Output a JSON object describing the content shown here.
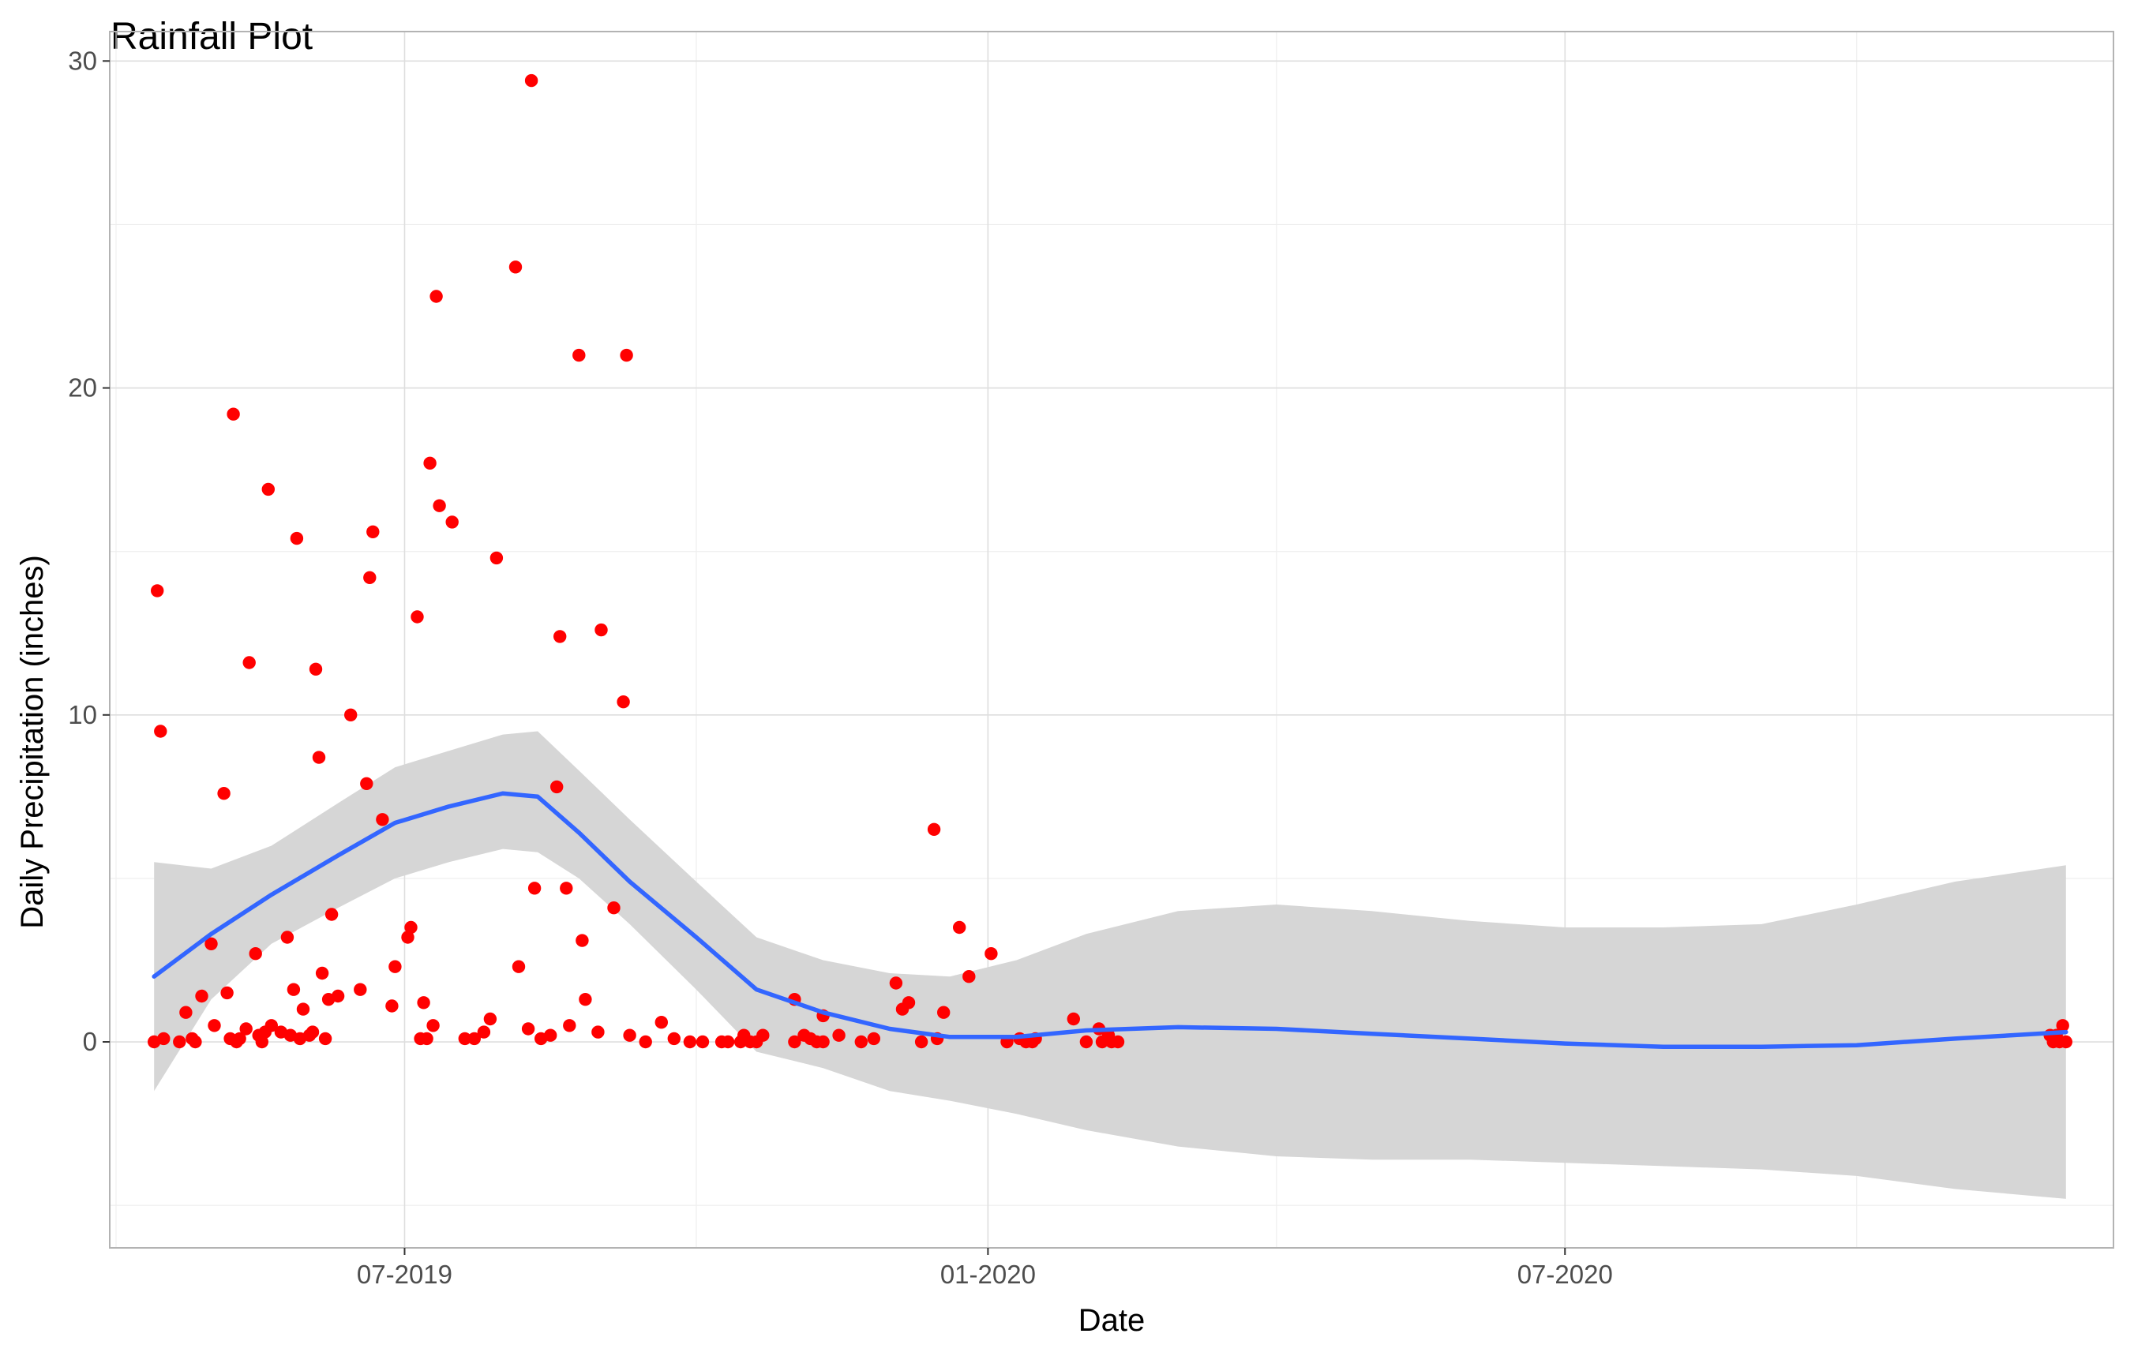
{
  "chart_data": {
    "type": "scatter",
    "title": "Rainfall Plot",
    "xlabel": "Date",
    "ylabel": "Daily Precipitation (inches)",
    "xlim": [
      "2019-03-30",
      "2020-12-21"
    ],
    "ylim": [
      -6.3,
      30.9
    ],
    "x_ticks": [
      "2019-07-01",
      "2020-01-01",
      "2020-07-01"
    ],
    "x_tick_labels": [
      "07-2019",
      "01-2020",
      "07-2020"
    ],
    "y_ticks": [
      0,
      10,
      20,
      30
    ],
    "y_tick_labels": [
      "0",
      "10",
      "20",
      "30"
    ],
    "grid": true,
    "point_color": "#ff0000",
    "smooth_color": "#3366ff",
    "band_color": "#d6d6d6",
    "series": [
      {
        "kind": "points",
        "points": [
          {
            "x": "2019-04-13",
            "y": 0.0
          },
          {
            "x": "2019-04-14",
            "y": 13.8
          },
          {
            "x": "2019-04-15",
            "y": 9.5
          },
          {
            "x": "2019-04-16",
            "y": 0.1
          },
          {
            "x": "2019-04-21",
            "y": 0.0
          },
          {
            "x": "2019-04-23",
            "y": 0.9
          },
          {
            "x": "2019-04-25",
            "y": 0.1
          },
          {
            "x": "2019-04-26",
            "y": 0.0
          },
          {
            "x": "2019-04-28",
            "y": 1.4
          },
          {
            "x": "2019-05-01",
            "y": 3.0
          },
          {
            "x": "2019-05-02",
            "y": 0.5
          },
          {
            "x": "2019-05-05",
            "y": 7.6
          },
          {
            "x": "2019-05-06",
            "y": 1.5
          },
          {
            "x": "2019-05-07",
            "y": 0.1
          },
          {
            "x": "2019-05-08",
            "y": 19.2
          },
          {
            "x": "2019-05-09",
            "y": 0.0
          },
          {
            "x": "2019-05-10",
            "y": 0.1
          },
          {
            "x": "2019-05-12",
            "y": 0.4
          },
          {
            "x": "2019-05-13",
            "y": 11.6
          },
          {
            "x": "2019-05-15",
            "y": 2.7
          },
          {
            "x": "2019-05-16",
            "y": 0.2
          },
          {
            "x": "2019-05-17",
            "y": 0.0
          },
          {
            "x": "2019-05-18",
            "y": 0.3
          },
          {
            "x": "2019-05-19",
            "y": 16.9
          },
          {
            "x": "2019-05-20",
            "y": 0.5
          },
          {
            "x": "2019-05-23",
            "y": 0.3
          },
          {
            "x": "2019-05-25",
            "y": 3.2
          },
          {
            "x": "2019-05-26",
            "y": 0.2
          },
          {
            "x": "2019-05-27",
            "y": 1.6
          },
          {
            "x": "2019-05-28",
            "y": 15.4
          },
          {
            "x": "2019-05-29",
            "y": 0.1
          },
          {
            "x": "2019-05-30",
            "y": 1.0
          },
          {
            "x": "2019-06-01",
            "y": 0.2
          },
          {
            "x": "2019-06-02",
            "y": 0.3
          },
          {
            "x": "2019-06-03",
            "y": 11.4
          },
          {
            "x": "2019-06-04",
            "y": 8.7
          },
          {
            "x": "2019-06-05",
            "y": 2.1
          },
          {
            "x": "2019-06-06",
            "y": 0.1
          },
          {
            "x": "2019-06-07",
            "y": 1.3
          },
          {
            "x": "2019-06-08",
            "y": 3.9
          },
          {
            "x": "2019-06-10",
            "y": 1.4
          },
          {
            "x": "2019-06-14",
            "y": 10.0
          },
          {
            "x": "2019-06-17",
            "y": 1.6
          },
          {
            "x": "2019-06-19",
            "y": 7.9
          },
          {
            "x": "2019-06-20",
            "y": 14.2
          },
          {
            "x": "2019-06-21",
            "y": 15.6
          },
          {
            "x": "2019-06-24",
            "y": 6.8
          },
          {
            "x": "2019-06-27",
            "y": 1.1
          },
          {
            "x": "2019-06-28",
            "y": 2.3
          },
          {
            "x": "2019-07-02",
            "y": 3.2
          },
          {
            "x": "2019-07-03",
            "y": 3.5
          },
          {
            "x": "2019-07-05",
            "y": 13.0
          },
          {
            "x": "2019-07-06",
            "y": 0.1
          },
          {
            "x": "2019-07-07",
            "y": 1.2
          },
          {
            "x": "2019-07-08",
            "y": 0.1
          },
          {
            "x": "2019-07-09",
            "y": 17.7
          },
          {
            "x": "2019-07-10",
            "y": 0.5
          },
          {
            "x": "2019-07-11",
            "y": 22.8
          },
          {
            "x": "2019-07-12",
            "y": 16.4
          },
          {
            "x": "2019-07-16",
            "y": 15.9
          },
          {
            "x": "2019-07-20",
            "y": 0.1
          },
          {
            "x": "2019-07-23",
            "y": 0.1
          },
          {
            "x": "2019-07-26",
            "y": 0.3
          },
          {
            "x": "2019-07-28",
            "y": 0.7
          },
          {
            "x": "2019-07-30",
            "y": 14.8
          },
          {
            "x": "2019-08-05",
            "y": 23.7
          },
          {
            "x": "2019-08-06",
            "y": 2.3
          },
          {
            "x": "2019-08-09",
            "y": 0.4
          },
          {
            "x": "2019-08-10",
            "y": 29.4
          },
          {
            "x": "2019-08-11",
            "y": 4.7
          },
          {
            "x": "2019-08-13",
            "y": 0.1
          },
          {
            "x": "2019-08-16",
            "y": 0.2
          },
          {
            "x": "2019-08-18",
            "y": 7.8
          },
          {
            "x": "2019-08-19",
            "y": 12.4
          },
          {
            "x": "2019-08-21",
            "y": 4.7
          },
          {
            "x": "2019-08-22",
            "y": 0.5
          },
          {
            "x": "2019-08-25",
            "y": 21.0
          },
          {
            "x": "2019-08-26",
            "y": 3.1
          },
          {
            "x": "2019-08-27",
            "y": 1.3
          },
          {
            "x": "2019-08-31",
            "y": 0.3
          },
          {
            "x": "2019-09-01",
            "y": 12.6
          },
          {
            "x": "2019-09-05",
            "y": 4.1
          },
          {
            "x": "2019-09-08",
            "y": 10.4
          },
          {
            "x": "2019-09-09",
            "y": 21.0
          },
          {
            "x": "2019-09-10",
            "y": 0.2
          },
          {
            "x": "2019-09-15",
            "y": 0.0
          },
          {
            "x": "2019-09-20",
            "y": 0.6
          },
          {
            "x": "2019-09-24",
            "y": 0.1
          },
          {
            "x": "2019-09-29",
            "y": 0.0
          },
          {
            "x": "2019-10-03",
            "y": 0.0
          },
          {
            "x": "2019-10-09",
            "y": 0.0
          },
          {
            "x": "2019-10-11",
            "y": 0.0
          },
          {
            "x": "2019-10-15",
            "y": 0.0
          },
          {
            "x": "2019-10-16",
            "y": 0.2
          },
          {
            "x": "2019-10-18",
            "y": 0.0
          },
          {
            "x": "2019-10-20",
            "y": 0.0
          },
          {
            "x": "2019-10-22",
            "y": 0.2
          },
          {
            "x": "2019-11-01",
            "y": 1.3
          },
          {
            "x": "2019-11-01",
            "y": 0.0
          },
          {
            "x": "2019-11-04",
            "y": 0.2
          },
          {
            "x": "2019-11-06",
            "y": 0.1
          },
          {
            "x": "2019-11-08",
            "y": 0.0
          },
          {
            "x": "2019-11-10",
            "y": 0.8
          },
          {
            "x": "2019-11-10",
            "y": 0.0
          },
          {
            "x": "2019-11-15",
            "y": 0.2
          },
          {
            "x": "2019-11-22",
            "y": 0.0
          },
          {
            "x": "2019-11-26",
            "y": 0.1
          },
          {
            "x": "2019-12-03",
            "y": 1.8
          },
          {
            "x": "2019-12-05",
            "y": 1.0
          },
          {
            "x": "2019-12-07",
            "y": 1.2
          },
          {
            "x": "2019-12-11",
            "y": 0.0
          },
          {
            "x": "2019-12-15",
            "y": 6.5
          },
          {
            "x": "2019-12-16",
            "y": 0.1
          },
          {
            "x": "2019-12-18",
            "y": 0.9
          },
          {
            "x": "2019-12-23",
            "y": 3.5
          },
          {
            "x": "2019-12-26",
            "y": 2.0
          },
          {
            "x": "2020-01-02",
            "y": 2.7
          },
          {
            "x": "2020-01-07",
            "y": 0.0
          },
          {
            "x": "2020-01-11",
            "y": 0.1
          },
          {
            "x": "2020-01-13",
            "y": 0.0
          },
          {
            "x": "2020-01-15",
            "y": 0.0
          },
          {
            "x": "2020-01-16",
            "y": 0.1
          },
          {
            "x": "2020-01-28",
            "y": 0.7
          },
          {
            "x": "2020-02-01",
            "y": 0.0
          },
          {
            "x": "2020-02-05",
            "y": 0.4
          },
          {
            "x": "2020-02-06",
            "y": 0.0
          },
          {
            "x": "2020-02-08",
            "y": 0.2
          },
          {
            "x": "2020-02-09",
            "y": 0.0
          },
          {
            "x": "2020-02-11",
            "y": 0.0
          },
          {
            "x": "2020-12-01",
            "y": 0.2
          },
          {
            "x": "2020-12-02",
            "y": 0.0
          },
          {
            "x": "2020-12-03",
            "y": 0.2
          },
          {
            "x": "2020-12-04",
            "y": 0.0
          },
          {
            "x": "2020-12-05",
            "y": 0.5
          },
          {
            "x": "2020-12-06",
            "y": 0.0
          }
        ]
      },
      {
        "kind": "smooth",
        "line": [
          {
            "x": "2019-04-13",
            "y": 2.0,
            "lo": -1.5,
            "hi": 5.5
          },
          {
            "x": "2019-05-01",
            "y": 3.3,
            "lo": 1.3,
            "hi": 5.3
          },
          {
            "x": "2019-05-20",
            "y": 4.5,
            "lo": 3.0,
            "hi": 6.0
          },
          {
            "x": "2019-06-10",
            "y": 5.7,
            "lo": 4.1,
            "hi": 7.3
          },
          {
            "x": "2019-06-28",
            "y": 6.7,
            "lo": 5.0,
            "hi": 8.4
          },
          {
            "x": "2019-07-15",
            "y": 7.2,
            "lo": 5.5,
            "hi": 8.9
          },
          {
            "x": "2019-08-01",
            "y": 7.6,
            "lo": 5.9,
            "hi": 9.4
          },
          {
            "x": "2019-08-12",
            "y": 7.5,
            "lo": 5.8,
            "hi": 9.5
          },
          {
            "x": "2019-08-25",
            "y": 6.4,
            "lo": 5.0,
            "hi": 8.3
          },
          {
            "x": "2019-09-10",
            "y": 4.9,
            "lo": 3.6,
            "hi": 6.8
          },
          {
            "x": "2019-10-01",
            "y": 3.2,
            "lo": 1.6,
            "hi": 4.9
          },
          {
            "x": "2019-10-20",
            "y": 1.6,
            "lo": -0.3,
            "hi": 3.2
          },
          {
            "x": "2019-11-10",
            "y": 0.9,
            "lo": -0.8,
            "hi": 2.5
          },
          {
            "x": "2019-12-01",
            "y": 0.4,
            "lo": -1.5,
            "hi": 2.1
          },
          {
            "x": "2019-12-20",
            "y": 0.15,
            "lo": -1.8,
            "hi": 2.0
          },
          {
            "x": "2020-01-10",
            "y": 0.15,
            "lo": -2.2,
            "hi": 2.5
          },
          {
            "x": "2020-02-01",
            "y": 0.35,
            "lo": -2.7,
            "hi": 3.3
          },
          {
            "x": "2020-03-01",
            "y": 0.45,
            "lo": -3.2,
            "hi": 4.0
          },
          {
            "x": "2020-04-01",
            "y": 0.4,
            "lo": -3.5,
            "hi": 4.2
          },
          {
            "x": "2020-05-01",
            "y": 0.25,
            "lo": -3.6,
            "hi": 4.0
          },
          {
            "x": "2020-06-01",
            "y": 0.1,
            "lo": -3.6,
            "hi": 3.7
          },
          {
            "x": "2020-07-01",
            "y": -0.05,
            "lo": -3.7,
            "hi": 3.5
          },
          {
            "x": "2020-08-01",
            "y": -0.15,
            "lo": -3.8,
            "hi": 3.5
          },
          {
            "x": "2020-09-01",
            "y": -0.15,
            "lo": -3.9,
            "hi": 3.6
          },
          {
            "x": "2020-10-01",
            "y": -0.1,
            "lo": -4.1,
            "hi": 4.2
          },
          {
            "x": "2020-11-01",
            "y": 0.1,
            "lo": -4.5,
            "hi": 4.9
          },
          {
            "x": "2020-12-06",
            "y": 0.3,
            "lo": -4.8,
            "hi": 5.4
          }
        ]
      }
    ]
  }
}
